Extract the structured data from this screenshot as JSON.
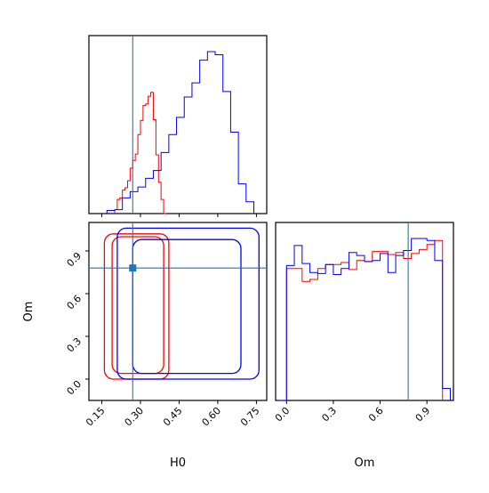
{
  "chart_data": {
    "type": "corner",
    "parameters": [
      "H0",
      "Om"
    ],
    "axis_labels": {
      "x_left": "H0",
      "x_right": "Om",
      "y_left": "Om"
    },
    "truth": {
      "H0": 0.27,
      "Om": 0.78
    },
    "h0_axis": {
      "range": [
        0.1,
        0.79
      ],
      "ticks": [
        "0.15",
        "0.30",
        "0.45",
        "0.60",
        "0.75"
      ],
      "tick_values": [
        0.15,
        0.3,
        0.45,
        0.6,
        0.75
      ]
    },
    "om_axis": {
      "range": [
        -0.15,
        1.1
      ],
      "ticks": [
        "0.0",
        "0.3",
        "0.6",
        "0.9"
      ],
      "tick_values": [
        0.0,
        0.3,
        0.6,
        0.9
      ]
    },
    "om_hist_x_range": [
      -0.07,
      1.07
    ],
    "colors": {
      "sample_a": "#ff0000",
      "sample_b": "#0000ff",
      "truth": "#1f77b4"
    },
    "series": [
      {
        "color": "#ff0000",
        "h0_histogram": {
          "bin_edges": [
            0.2,
            0.21,
            0.22,
            0.23,
            0.24,
            0.25,
            0.26,
            0.27,
            0.28,
            0.29,
            0.3,
            0.31,
            0.32,
            0.33,
            0.34,
            0.35,
            0.36,
            0.37,
            0.38,
            0.39,
            0.4
          ],
          "counts": [
            5,
            18,
            20,
            30,
            33,
            42,
            58,
            68,
            76,
            101,
            119,
            138,
            140,
            150,
            155,
            120,
            75,
            40,
            18,
            0
          ]
        },
        "om_histogram": {
          "bin_edges": [
            0.0,
            0.05,
            0.1,
            0.15,
            0.2,
            0.25,
            0.3,
            0.35,
            0.4,
            0.45,
            0.5,
            0.55,
            0.6,
            0.65,
            0.7,
            0.75,
            0.8,
            0.85,
            0.9,
            0.95,
            1.0
          ],
          "counts": [
            132,
            132,
            119,
            121,
            132,
            136,
            136,
            138,
            131,
            140,
            139,
            149,
            149,
            146,
            148,
            142,
            147,
            151,
            156,
            160
          ]
        },
        "contour_regions": [
          {
            "h0": [
              0.16,
              0.41
            ],
            "om": [
              0.0,
              1.02
            ]
          },
          {
            "h0": [
              0.19,
              0.39
            ],
            "om": [
              0.04,
              1.0
            ]
          }
        ]
      },
      {
        "color": "#0000ff",
        "h0_histogram": {
          "bin_edges": [
            0.17,
            0.2,
            0.23,
            0.26,
            0.29,
            0.32,
            0.35,
            0.38,
            0.41,
            0.44,
            0.47,
            0.5,
            0.53,
            0.56,
            0.59,
            0.62,
            0.65,
            0.68,
            0.71,
            0.74
          ],
          "counts": [
            4,
            5,
            20,
            28,
            34,
            45,
            55,
            78,
            101,
            123,
            149,
            167,
            196,
            207,
            203,
            156,
            104,
            38,
            15
          ]
        },
        "om_histogram": {
          "bin_edges": [
            -0.05,
            0.0,
            0.05,
            0.1,
            0.15,
            0.2,
            0.25,
            0.3,
            0.35,
            0.4,
            0.45,
            0.5,
            0.55,
            0.6,
            0.65,
            0.7,
            0.75,
            0.8,
            0.85,
            0.9,
            0.95,
            1.0,
            1.05
          ],
          "counts": [
            0,
            135,
            155,
            137,
            128,
            127,
            136,
            126,
            132,
            148,
            145,
            139,
            140,
            147,
            128,
            145,
            150,
            162,
            162,
            160,
            140,
            12
          ]
        },
        "contour_regions": [
          {
            "h0": [
              0.21,
              0.76
            ],
            "om": [
              0.0,
              1.06
            ]
          },
          {
            "h0": [
              0.27,
              0.69
            ],
            "om": [
              0.04,
              0.98
            ]
          }
        ]
      }
    ]
  }
}
